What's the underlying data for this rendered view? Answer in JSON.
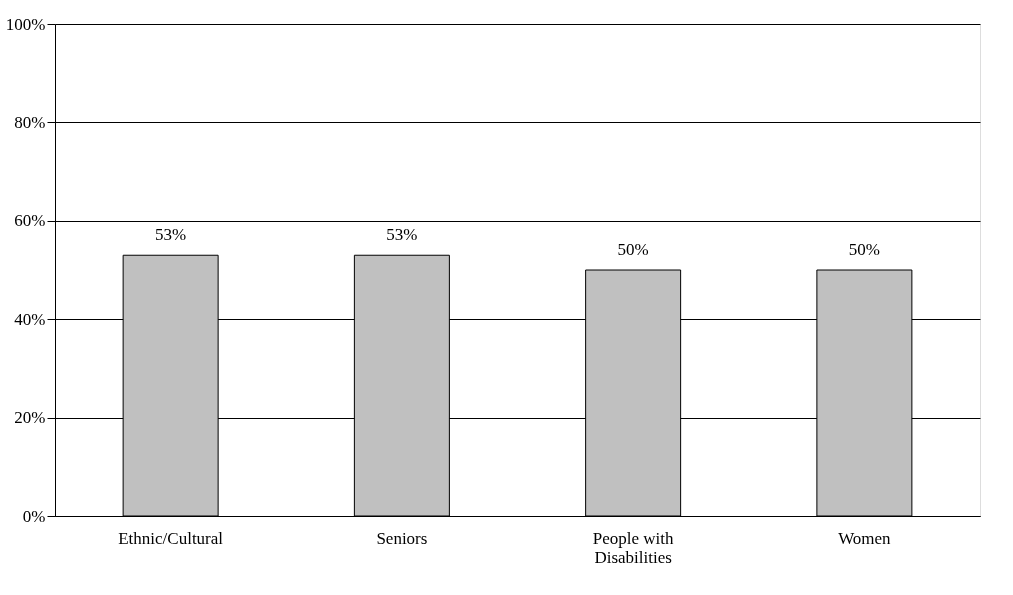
{
  "chart_data": {
    "type": "bar",
    "categories": [
      "Ethnic/Cultural",
      "Seniors",
      "People with Disabilities",
      "Women"
    ],
    "values": [
      53,
      53,
      50,
      50
    ],
    "value_labels": [
      "53%",
      "53%",
      "50%",
      "50%"
    ],
    "color": "#c0c0c0",
    "ylim": [
      0,
      100
    ],
    "yticks": [
      {
        "value": 0,
        "label": "0%"
      },
      {
        "value": 20,
        "label": "20%"
      },
      {
        "value": 40,
        "label": "40%"
      },
      {
        "value": 60,
        "label": "60%"
      },
      {
        "value": 80,
        "label": "80%"
      },
      {
        "value": 100,
        "label": "100%"
      }
    ],
    "grid": "y"
  }
}
